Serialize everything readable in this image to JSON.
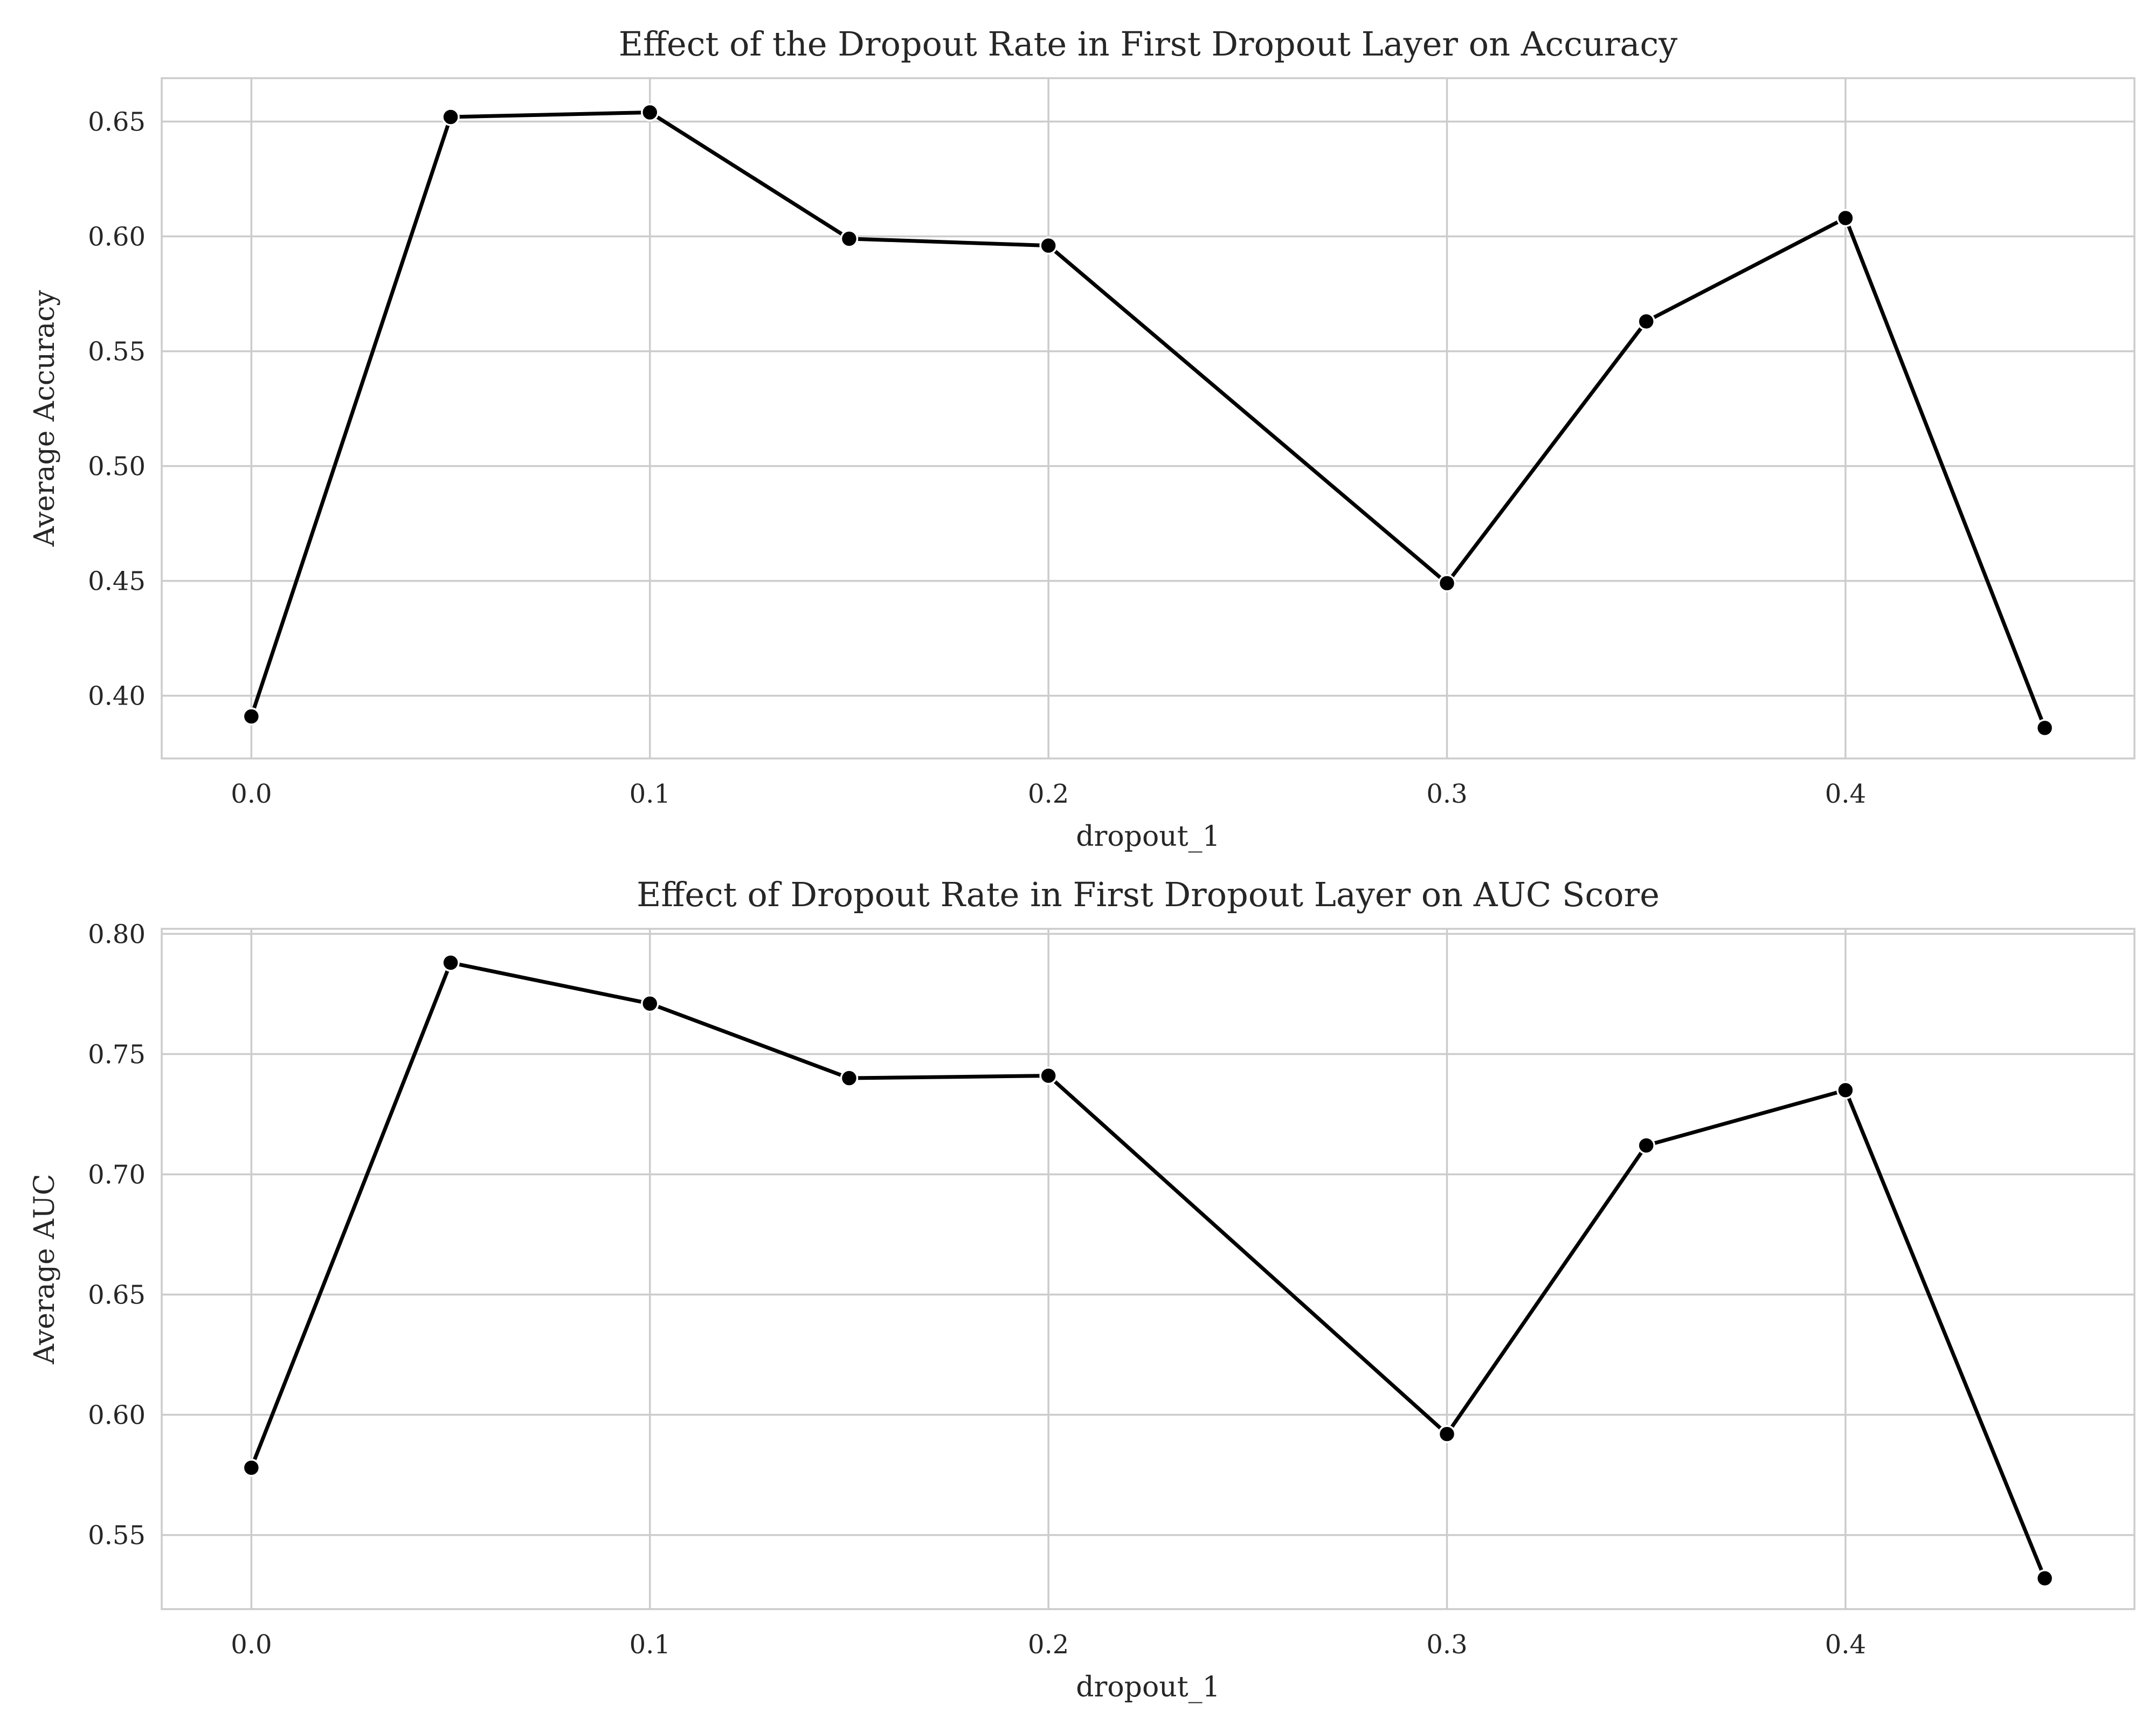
{
  "chart_data": [
    {
      "type": "line",
      "title": "Effect of the Dropout Rate in First Dropout Layer on Accuracy",
      "xlabel": "dropout_1",
      "ylabel": "Average Accuracy",
      "x": [
        0.0,
        0.05,
        0.1,
        0.15,
        0.2,
        0.3,
        0.35,
        0.4,
        0.45
      ],
      "values": [
        0.391,
        0.652,
        0.654,
        0.599,
        0.596,
        0.449,
        0.563,
        0.608,
        0.386
      ],
      "xlim": [
        -0.0225,
        0.4725
      ],
      "ylim": [
        0.3727,
        0.6689
      ],
      "xticks": [
        0.0,
        0.1,
        0.2,
        0.3,
        0.4
      ],
      "xtick_labels": [
        "0.0",
        "0.1",
        "0.2",
        "0.3",
        "0.4"
      ],
      "yticks": [
        0.4,
        0.45,
        0.5,
        0.55,
        0.6,
        0.65
      ],
      "ytick_labels": [
        "0.40",
        "0.45",
        "0.50",
        "0.55",
        "0.60",
        "0.65"
      ],
      "grid": true,
      "line_color": "#000000"
    },
    {
      "type": "line",
      "title": "Effect of Dropout Rate in First Dropout Layer on AUC Score",
      "xlabel": "dropout_1",
      "ylabel": "Average AUC",
      "x": [
        0.0,
        0.05,
        0.1,
        0.15,
        0.2,
        0.3,
        0.35,
        0.4,
        0.45
      ],
      "values": [
        0.578,
        0.788,
        0.771,
        0.74,
        0.741,
        0.592,
        0.712,
        0.735,
        0.532
      ],
      "xlim": [
        -0.0225,
        0.4725
      ],
      "ylim": [
        0.5192,
        0.8021
      ],
      "xticks": [
        0.0,
        0.1,
        0.2,
        0.3,
        0.4
      ],
      "xtick_labels": [
        "0.0",
        "0.1",
        "0.2",
        "0.3",
        "0.4"
      ],
      "yticks": [
        0.55,
        0.6,
        0.65,
        0.7,
        0.75,
        0.8
      ],
      "ytick_labels": [
        "0.55",
        "0.60",
        "0.65",
        "0.70",
        "0.75",
        "0.80"
      ],
      "grid": true,
      "line_color": "#000000"
    }
  ]
}
